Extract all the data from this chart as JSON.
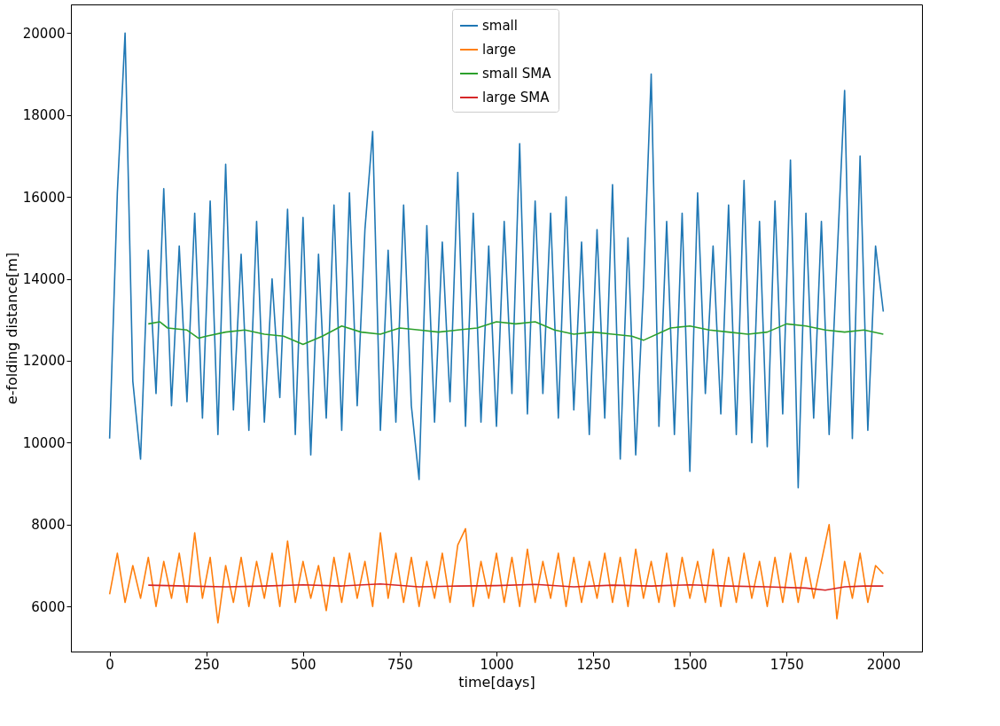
{
  "chart_data": {
    "type": "line",
    "xlabel": "time[days]",
    "ylabel": "e-folding distance[m]",
    "xlim": [
      -100,
      2100
    ],
    "ylim": [
      4900,
      20700
    ],
    "xticks": [
      0,
      250,
      500,
      750,
      1000,
      1250,
      1500,
      1750,
      2000
    ],
    "yticks": [
      6000,
      8000,
      10000,
      12000,
      14000,
      16000,
      18000,
      20000
    ],
    "grid": false,
    "legend": "top",
    "line_style": "solid",
    "marker": "none",
    "series": [
      {
        "name": "small",
        "color": "#1f77b4",
        "x": [
          0,
          20,
          40,
          60,
          80,
          100,
          120,
          140,
          160,
          180,
          200,
          220,
          240,
          260,
          280,
          300,
          320,
          340,
          360,
          380,
          400,
          420,
          440,
          460,
          480,
          500,
          520,
          540,
          560,
          580,
          600,
          620,
          640,
          660,
          680,
          700,
          720,
          740,
          760,
          780,
          800,
          820,
          840,
          860,
          880,
          900,
          920,
          940,
          960,
          980,
          1000,
          1020,
          1040,
          1060,
          1080,
          1100,
          1120,
          1140,
          1160,
          1180,
          1200,
          1220,
          1240,
          1260,
          1280,
          1300,
          1320,
          1340,
          1360,
          1380,
          1400,
          1420,
          1440,
          1460,
          1480,
          1500,
          1520,
          1540,
          1560,
          1580,
          1600,
          1620,
          1640,
          1660,
          1680,
          1700,
          1720,
          1740,
          1760,
          1780,
          1800,
          1820,
          1840,
          1860,
          1880,
          1900,
          1920,
          1940,
          1960,
          1980,
          2000
        ],
        "values": [
          10100,
          16100,
          20000,
          11500,
          9600,
          14700,
          11200,
          16200,
          10900,
          14800,
          11000,
          15600,
          10600,
          15900,
          10200,
          16800,
          10800,
          14600,
          10300,
          15400,
          10500,
          14000,
          11100,
          15700,
          10200,
          15500,
          9700,
          14600,
          10600,
          15800,
          10300,
          16100,
          10900,
          15200,
          17600,
          10300,
          14700,
          10500,
          15800,
          10900,
          9100,
          15300,
          10500,
          14900,
          11000,
          16600,
          10400,
          15600,
          10500,
          14800,
          10400,
          15400,
          11200,
          17300,
          10700,
          15900,
          11200,
          15600,
          10600,
          16000,
          10800,
          14900,
          10200,
          15200,
          10600,
          16300,
          9600,
          15000,
          9700,
          13800,
          19000,
          10400,
          15400,
          10200,
          15600,
          9300,
          16100,
          11200,
          14800,
          10700,
          15800,
          10200,
          16400,
          10000,
          15400,
          9900,
          15900,
          10700,
          16900,
          8900,
          15600,
          10600,
          15400,
          10200,
          14400,
          18600,
          10100,
          17000,
          10300,
          14800,
          13200
        ]
      },
      {
        "name": "large",
        "color": "#ff7f0e",
        "x": [
          0,
          20,
          40,
          60,
          80,
          100,
          120,
          140,
          160,
          180,
          200,
          220,
          240,
          260,
          280,
          300,
          320,
          340,
          360,
          380,
          400,
          420,
          440,
          460,
          480,
          500,
          520,
          540,
          560,
          580,
          600,
          620,
          640,
          660,
          680,
          700,
          720,
          740,
          760,
          780,
          800,
          820,
          840,
          860,
          880,
          900,
          920,
          940,
          960,
          980,
          1000,
          1020,
          1040,
          1060,
          1080,
          1100,
          1120,
          1140,
          1160,
          1180,
          1200,
          1220,
          1240,
          1260,
          1280,
          1300,
          1320,
          1340,
          1360,
          1380,
          1400,
          1420,
          1440,
          1460,
          1480,
          1500,
          1520,
          1540,
          1560,
          1580,
          1600,
          1620,
          1640,
          1660,
          1680,
          1700,
          1720,
          1740,
          1760,
          1780,
          1800,
          1820,
          1840,
          1860,
          1880,
          1900,
          1920,
          1940,
          1960,
          1980,
          2000
        ],
        "values": [
          6300,
          7300,
          6100,
          7000,
          6200,
          7200,
          6000,
          7100,
          6200,
          7300,
          6100,
          7800,
          6200,
          7200,
          5600,
          7000,
          6100,
          7200,
          6000,
          7100,
          6200,
          7300,
          6000,
          7600,
          6100,
          7100,
          6200,
          7000,
          5900,
          7200,
          6100,
          7300,
          6200,
          7100,
          6000,
          7800,
          6200,
          7300,
          6100,
          7200,
          6000,
          7100,
          6200,
          7300,
          6100,
          7500,
          7900,
          6000,
          7100,
          6200,
          7300,
          6100,
          7200,
          6000,
          7400,
          6100,
          7100,
          6200,
          7300,
          6000,
          7200,
          6100,
          7100,
          6200,
          7300,
          6100,
          7200,
          6000,
          7400,
          6200,
          7100,
          6100,
          7300,
          6000,
          7200,
          6200,
          7100,
          6100,
          7400,
          6000,
          7200,
          6100,
          7300,
          6200,
          7100,
          6000,
          7200,
          6100,
          7300,
          6100,
          7200,
          6200,
          7100,
          8000,
          5700,
          7100,
          6200,
          7300,
          6100,
          7000,
          6800
        ]
      },
      {
        "name": "small SMA",
        "color": "#2ca02c",
        "x": [
          100,
          130,
          150,
          200,
          230,
          250,
          300,
          350,
          400,
          450,
          500,
          550,
          600,
          650,
          700,
          750,
          800,
          850,
          900,
          950,
          1000,
          1050,
          1100,
          1150,
          1200,
          1250,
          1300,
          1350,
          1380,
          1450,
          1500,
          1550,
          1600,
          1650,
          1700,
          1750,
          1800,
          1850,
          1900,
          1950,
          2000
        ],
        "values": [
          12900,
          12950,
          12800,
          12750,
          12550,
          12600,
          12700,
          12750,
          12650,
          12600,
          12400,
          12600,
          12850,
          12700,
          12650,
          12800,
          12750,
          12700,
          12750,
          12800,
          12950,
          12900,
          12950,
          12750,
          12650,
          12700,
          12650,
          12600,
          12500,
          12800,
          12850,
          12750,
          12700,
          12650,
          12700,
          12900,
          12850,
          12750,
          12700,
          12750,
          12650
        ]
      },
      {
        "name": "large SMA",
        "color": "#d62728",
        "x": [
          100,
          200,
          300,
          400,
          500,
          600,
          700,
          800,
          900,
          1000,
          1100,
          1200,
          1300,
          1400,
          1500,
          1600,
          1700,
          1800,
          1850,
          1900,
          1950,
          2000
        ],
        "values": [
          6520,
          6500,
          6480,
          6500,
          6530,
          6500,
          6550,
          6480,
          6500,
          6510,
          6540,
          6480,
          6520,
          6500,
          6530,
          6500,
          6480,
          6450,
          6400,
          6480,
          6500,
          6500
        ]
      }
    ]
  }
}
